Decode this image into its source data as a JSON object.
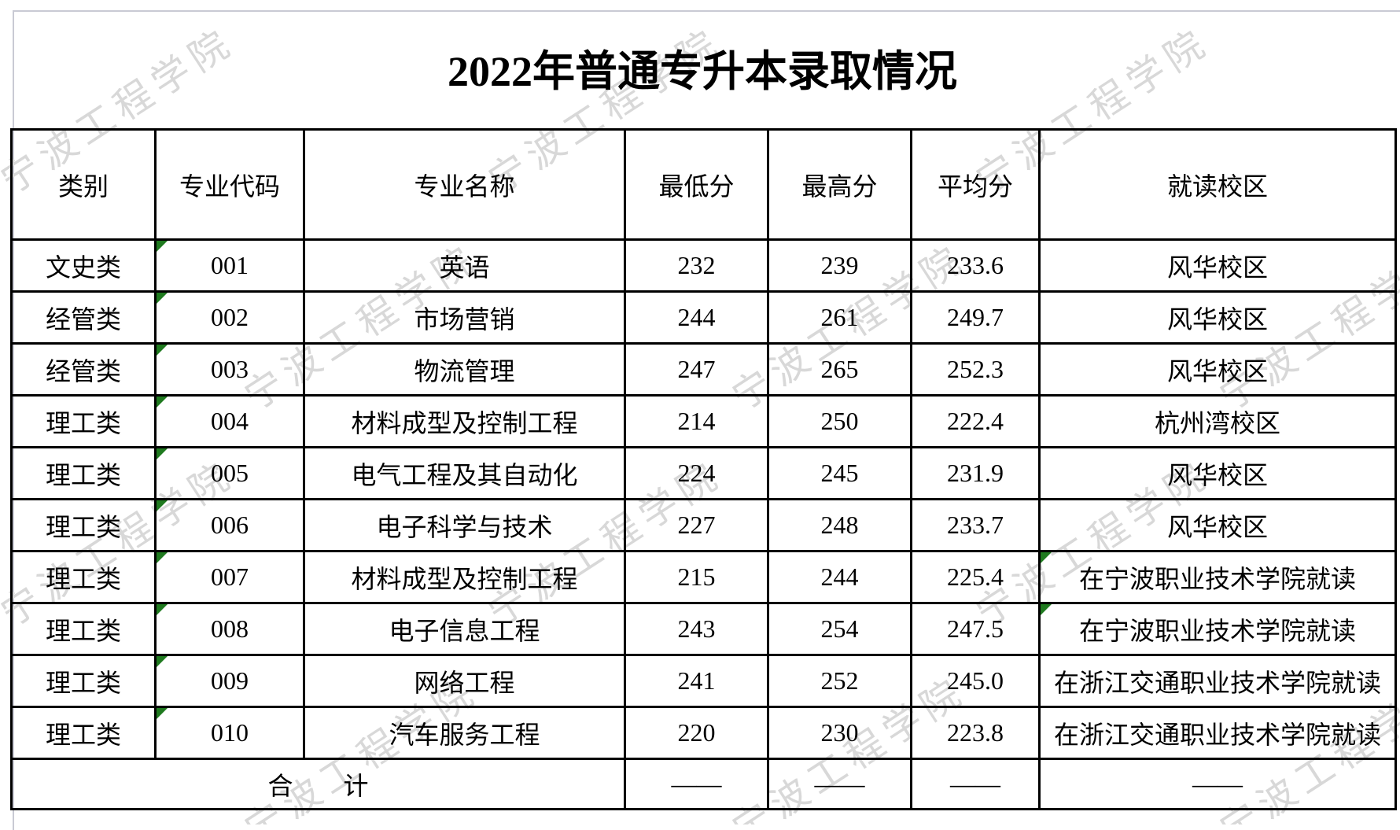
{
  "page": {
    "title": "2022年普通专升本录取情况",
    "watermark_text": "宁波工程学院"
  },
  "table": {
    "headers": {
      "category": "类别",
      "code": "专业代码",
      "major": "专业名称",
      "min": "最低分",
      "max": "最高分",
      "avg": "平均分",
      "campus": "就读校区"
    },
    "rows": [
      {
        "category": "文史类",
        "code": "001",
        "major": "英语",
        "min": "232",
        "max": "239",
        "avg": "233.6",
        "campus": "风华校区",
        "code_marker": true,
        "campus_marker": false
      },
      {
        "category": "经管类",
        "code": "002",
        "major": "市场营销",
        "min": "244",
        "max": "261",
        "avg": "249.7",
        "campus": "风华校区",
        "code_marker": true,
        "campus_marker": false
      },
      {
        "category": "经管类",
        "code": "003",
        "major": "物流管理",
        "min": "247",
        "max": "265",
        "avg": "252.3",
        "campus": "风华校区",
        "code_marker": true,
        "campus_marker": false
      },
      {
        "category": "理工类",
        "code": "004",
        "major": "材料成型及控制工程",
        "min": "214",
        "max": "250",
        "avg": "222.4",
        "campus": "杭州湾校区",
        "code_marker": true,
        "campus_marker": false
      },
      {
        "category": "理工类",
        "code": "005",
        "major": "电气工程及其自动化",
        "min": "224",
        "max": "245",
        "avg": "231.9",
        "campus": "风华校区",
        "code_marker": true,
        "campus_marker": false
      },
      {
        "category": "理工类",
        "code": "006",
        "major": "电子科学与技术",
        "min": "227",
        "max": "248",
        "avg": "233.7",
        "campus": "风华校区",
        "code_marker": true,
        "campus_marker": false
      },
      {
        "category": "理工类",
        "code": "007",
        "major": "材料成型及控制工程",
        "min": "215",
        "max": "244",
        "avg": "225.4",
        "campus": "在宁波职业技术学院就读",
        "code_marker": true,
        "campus_marker": true
      },
      {
        "category": "理工类",
        "code": "008",
        "major": "电子信息工程",
        "min": "243",
        "max": "254",
        "avg": "247.5",
        "campus": "在宁波职业技术学院就读",
        "code_marker": true,
        "campus_marker": true
      },
      {
        "category": "理工类",
        "code": "009",
        "major": "网络工程",
        "min": "241",
        "max": "252",
        "avg": "245.0",
        "campus": "在浙江交通职业技术学院就读",
        "code_marker": true,
        "campus_marker": false
      },
      {
        "category": "理工类",
        "code": "010",
        "major": "汽车服务工程",
        "min": "220",
        "max": "230",
        "avg": "223.8",
        "campus": "在浙江交通职业技术学院就读",
        "code_marker": true,
        "campus_marker": false
      }
    ],
    "total": {
      "label": "合　　计",
      "min": "——",
      "max": "——",
      "avg": "——",
      "campus": "——"
    }
  },
  "colors": {
    "marker_green": "#1f7a1f",
    "watermark_gray": "#d8d8d8",
    "grid_black": "#000000",
    "page_frame_gray": "#c9cad4"
  }
}
